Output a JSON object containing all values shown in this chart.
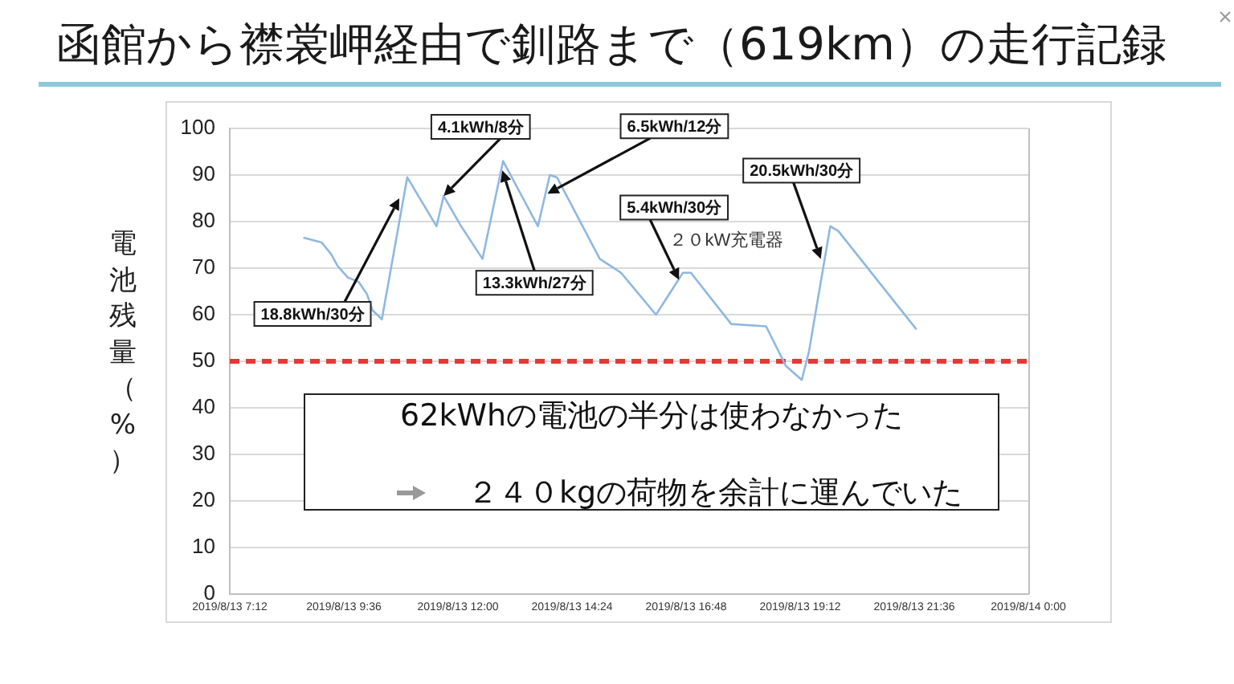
{
  "chart_data": {
    "type": "line",
    "title": "函館から襟裳岬経由で釧路まで（619km）の走行記録",
    "ylabel": "電池残量（%）",
    "x": [
      "2019-08-13T08:46",
      "2019-08-13T09:08",
      "2019-08-13T09:20",
      "2019-08-13T09:28",
      "2019-08-13T09:41",
      "2019-08-13T09:55",
      "2019-08-13T10:05",
      "2019-08-13T10:12",
      "2019-08-13T10:24",
      "2019-08-13T10:56",
      "2019-08-13T11:33",
      "2019-08-13T11:42",
      "2019-08-13T12:04",
      "2019-08-13T12:31",
      "2019-08-13T12:57",
      "2019-08-13T13:41",
      "2019-08-13T13:56",
      "2019-08-13T14:05",
      "2019-08-13T14:59",
      "2019-08-13T15:26",
      "2019-08-13T16:10",
      "2019-08-13T16:44",
      "2019-08-13T16:54",
      "2019-08-13T17:45",
      "2019-08-13T18:29",
      "2019-08-13T18:54",
      "2019-08-13T19:14",
      "2019-08-13T19:23",
      "2019-08-13T19:50",
      "2019-08-13T20:00",
      "2019-08-13T21:38"
    ],
    "values": [
      76.5,
      75.5,
      73,
      70.5,
      68,
      67,
      64.5,
      61,
      59,
      89.5,
      79,
      85.5,
      79,
      72,
      93,
      79,
      90,
      89.5,
      72,
      69,
      60,
      69,
      69,
      58,
      57.5,
      49,
      46,
      52,
      79,
      78,
      57
    ],
    "color": "#8fb8e0",
    "marker": "none",
    "line_style": "solid",
    "xlim": [
      "2019-08-13T07:12",
      "2019-08-14T00:00"
    ],
    "xticks": [
      {
        "value": "2019-08-13T07:12",
        "label": "2019/8/13 7:12"
      },
      {
        "value": "2019-08-13T09:36",
        "label": "2019/8/13 9:36"
      },
      {
        "value": "2019-08-13T12:00",
        "label": "2019/8/13 12:00"
      },
      {
        "value": "2019-08-13T14:24",
        "label": "2019/8/13 14:24"
      },
      {
        "value": "2019-08-13T16:48",
        "label": "2019/8/13 16:48"
      },
      {
        "value": "2019-08-13T19:12",
        "label": "2019/8/13 19:12"
      },
      {
        "value": "2019-08-13T21:36",
        "label": "2019/8/13 21:36"
      },
      {
        "value": "2019-08-14T00:00",
        "label": "2019/8/14 0:00"
      }
    ],
    "ylim": [
      0,
      100
    ],
    "yticks": [
      0,
      10,
      20,
      30,
      40,
      50,
      60,
      70,
      80,
      90,
      100
    ],
    "grid": "y",
    "ref_lines": [
      {
        "axis": "y",
        "value": 50,
        "color": "#e53935",
        "line_style": "dashed"
      }
    ],
    "annotations": [
      {
        "text": "18.8kWh/30分",
        "x": "2019-08-13T10:46",
        "y": 85
      },
      {
        "text": "4.1kWh/8分",
        "x": "2019-08-13T11:42",
        "y": 85.5
      },
      {
        "text": "13.3kWh/27分",
        "x": "2019-08-13T12:56",
        "y": 91
      },
      {
        "text": "6.5kWh/12分",
        "x": "2019-08-13T13:53",
        "y": 86
      },
      {
        "text": "5.4kWh/30分",
        "x": "2019-08-13T16:39",
        "y": 67.5
      },
      "２０kW充電器",
      {
        "text": "20.5kWh/30分",
        "x": "2019-08-13T19:38",
        "y": 72
      },
      "62kWhの電池の半分は使わなかった",
      "２４０kgの荷物を余計に運んでいた"
    ]
  }
}
